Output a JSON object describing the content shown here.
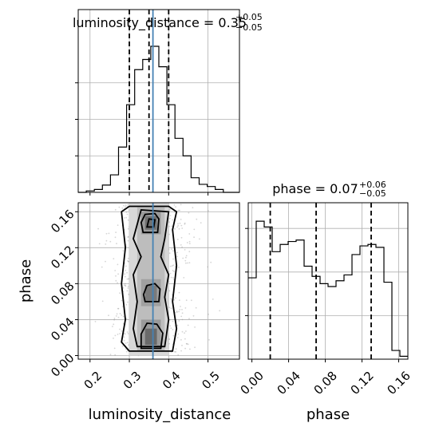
{
  "chart_data": [
    {
      "type": "histogram",
      "panel": "luminosity_distance-1d",
      "title": {
        "param": "luminosity_distance",
        "value": "0.35",
        "upper": "+0.05",
        "lower": "−0.05"
      },
      "xlim": [
        0.17,
        0.58
      ],
      "bins": {
        "edges": [
          0.17,
          0.1905,
          0.211,
          0.2315,
          0.252,
          0.2725,
          0.293,
          0.3135,
          0.334,
          0.3545,
          0.375,
          0.3955,
          0.416,
          0.4365,
          0.457,
          0.4775,
          0.498,
          0.5185,
          0.539,
          0.5595,
          0.58
        ],
        "counts": [
          0.0,
          0.01,
          0.02,
          0.05,
          0.12,
          0.31,
          0.6,
          0.84,
          0.91,
          1.0,
          0.86,
          0.6,
          0.37,
          0.25,
          0.1,
          0.055,
          0.04,
          0.02,
          0.0,
          0.0
        ]
      },
      "quantile_lines": [
        0.3,
        0.35,
        0.4
      ],
      "truth": 0.36,
      "grid": true
    },
    {
      "type": "histogram",
      "panel": "phase-1d",
      "title": {
        "param": "phase",
        "value": "0.07",
        "upper": "+0.06",
        "lower": "−0.05"
      },
      "xlim": [
        -0.004,
        0.17
      ],
      "xticks": [
        "0.00",
        "0.04",
        "0.08",
        "0.12",
        "0.16"
      ],
      "xlabel": "phase",
      "bins": {
        "edges": [
          -0.004,
          0.0047,
          0.0134,
          0.0221,
          0.0308,
          0.0395,
          0.0482,
          0.0569,
          0.0656,
          0.0743,
          0.083,
          0.0917,
          0.1004,
          0.1091,
          0.1178,
          0.1265,
          0.1352,
          0.1439,
          0.1526,
          0.1613,
          0.17
        ],
        "counts": [
          0.56,
          0.95,
          0.91,
          0.74,
          0.79,
          0.81,
          0.82,
          0.64,
          0.57,
          0.52,
          0.5,
          0.54,
          0.58,
          0.72,
          0.78,
          0.79,
          0.77,
          0.53,
          0.06,
          0.02
        ]
      },
      "quantile_lines": [
        0.02,
        0.07,
        0.13
      ],
      "grid": true
    },
    {
      "type": "2d-density",
      "panel": "luminosity_distance-phase",
      "xlim": [
        0.17,
        0.58
      ],
      "ylim": [
        -0.004,
        0.17
      ],
      "xticks": [
        "0.2",
        "0.3",
        "0.4",
        "0.5"
      ],
      "yticks": [
        "0.00",
        "0.04",
        "0.08",
        "0.12",
        "0.16"
      ],
      "xlabel": "luminosity_distance",
      "ylabel": "phase",
      "truth": 0.36,
      "grid": true
    }
  ],
  "colors": {
    "hist": "#000000",
    "truth": "#4682b4",
    "grid": "#b0b0b0"
  }
}
